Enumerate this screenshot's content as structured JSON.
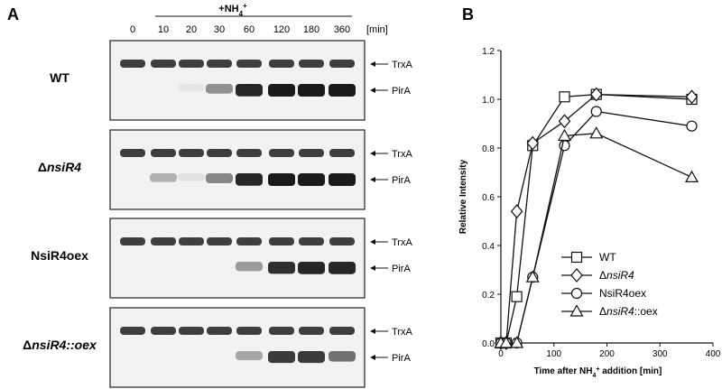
{
  "panel_a": {
    "letter": "A",
    "treatment_label": "+NH",
    "treatment_sub": "4",
    "treatment_sup": "+",
    "unit_label": "[min]",
    "timepoints": [
      "0",
      "10",
      "20",
      "30",
      "60",
      "120",
      "180",
      "360"
    ],
    "blots": [
      {
        "label": "WT",
        "italic": false,
        "trxa": [
          1,
          1,
          1,
          1,
          1,
          1,
          1,
          1
        ],
        "pira": [
          0,
          0,
          0.05,
          0.45,
          0.95,
          1,
          1,
          1
        ]
      },
      {
        "label": "ΔnsiR4",
        "italic": true,
        "trxa": [
          1,
          1,
          1,
          1,
          1,
          1,
          1,
          1
        ],
        "pira": [
          0,
          0.3,
          0.08,
          0.5,
          0.95,
          1,
          1,
          1
        ]
      },
      {
        "label": "NsiR4oex",
        "italic": false,
        "trxa": [
          1,
          1,
          1,
          1,
          1,
          1,
          1,
          1
        ],
        "pira": [
          0,
          0,
          0,
          0,
          0.4,
          0.9,
          0.95,
          0.95
        ]
      },
      {
        "label": "ΔnsiR4::oex",
        "italic": true,
        "trxa": [
          1,
          1,
          1,
          1,
          1,
          1,
          1,
          1
        ],
        "pira": [
          0,
          0,
          0,
          0,
          0.35,
          0.85,
          0.85,
          0.6
        ]
      }
    ],
    "band_labels": [
      "TrxA",
      "PirA"
    ]
  },
  "panel_b": {
    "letter": "B",
    "chart_data": {
      "type": "line",
      "xlabel": "Time after NH4+ addition [min]",
      "xlabel_parts": {
        "pre": "Time after NH",
        "sub": "4",
        "sup": "+",
        "post": " addition [min]"
      },
      "ylabel": "Relative Intensity",
      "xlim": [
        0,
        400
      ],
      "ylim": [
        0,
        1.2
      ],
      "xticks": [
        "0",
        "100",
        "200",
        "300",
        "400"
      ],
      "yticks": [
        "0.0",
        "0.2",
        "0.4",
        "0.6",
        "0.8",
        "1.0",
        "1.2"
      ],
      "grid": false,
      "legend": "bottom-right",
      "series": [
        {
          "name": "WT",
          "marker": "square",
          "x": [
            0,
            10,
            30,
            60,
            120,
            180,
            360
          ],
          "y": [
            0.0,
            0.0,
            0.19,
            0.81,
            1.01,
            1.02,
            1.0
          ]
        },
        {
          "name": "ΔnsiR4",
          "name_parts": [
            "Δ",
            "nsiR4",
            ""
          ],
          "marker": "diamond",
          "x": [
            0,
            10,
            30,
            60,
            120,
            180,
            360
          ],
          "y": [
            0.0,
            0.0,
            0.54,
            0.82,
            0.91,
            1.02,
            1.01
          ]
        },
        {
          "name": "NsiR4oex",
          "marker": "circle",
          "x": [
            0,
            10,
            30,
            60,
            120,
            180,
            360
          ],
          "y": [
            0.0,
            0.0,
            0.0,
            0.27,
            0.81,
            0.95,
            0.89
          ]
        },
        {
          "name": "ΔnsiR4::oex",
          "name_parts": [
            "Δ",
            "nsiR4",
            "::oex"
          ],
          "marker": "triangle",
          "x": [
            0,
            10,
            30,
            60,
            120,
            180,
            360
          ],
          "y": [
            0.0,
            0.0,
            0.0,
            0.27,
            0.85,
            0.86,
            0.68
          ]
        }
      ]
    }
  }
}
